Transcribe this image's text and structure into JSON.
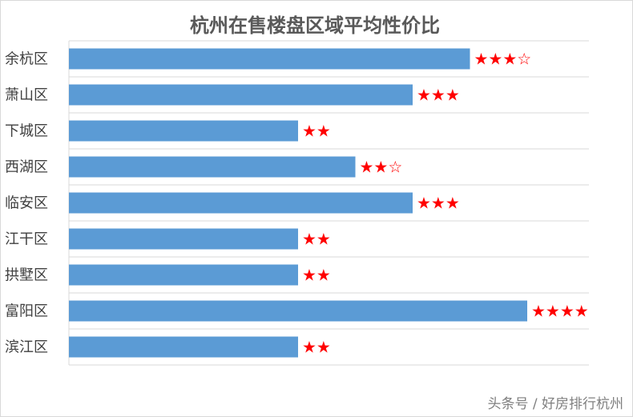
{
  "chart_data": {
    "type": "bar",
    "orientation": "horizontal",
    "title": "杭州在售楼盘区域平均性价比",
    "categories": [
      "余杭区",
      "萧山区",
      "下城区",
      "西湖区",
      "临安区",
      "江干区",
      "拱墅区",
      "富阳区",
      "滨江区"
    ],
    "values": [
      3.5,
      3,
      2,
      2.5,
      3,
      2,
      2,
      4,
      2
    ],
    "data_labels": [
      "★★★☆",
      "★★★",
      "★★",
      "★★☆",
      "★★★",
      "★★",
      "★★",
      "★★★★",
      "★★"
    ],
    "xlim": [
      0,
      4.5
    ],
    "grid": true,
    "legend": "none"
  },
  "colors": {
    "bar": "#5b9bd5",
    "stars": "#ff0000",
    "grid": "#d9d9d9"
  },
  "watermark": "头条号 / 好房排行杭州"
}
